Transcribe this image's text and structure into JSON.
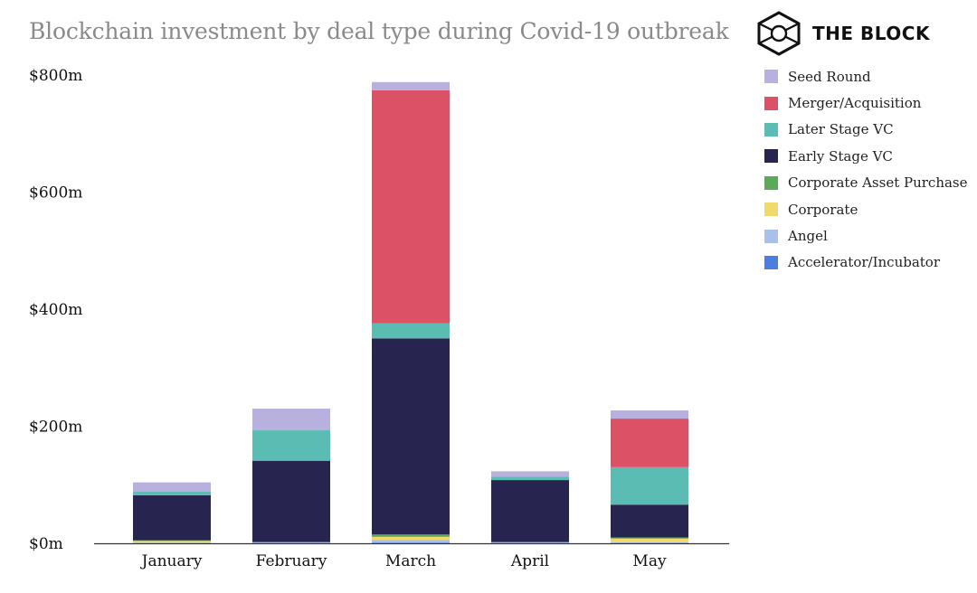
{
  "brand": {
    "name": "THE BLOCK"
  },
  "chart_data": {
    "type": "bar",
    "stacked": true,
    "title": "Blockchain investment by deal type during Covid-19 outbreak",
    "xlabel": "",
    "ylabel": "",
    "ylim": [
      0,
      800
    ],
    "yticks": [
      0,
      200,
      400,
      600,
      800
    ],
    "ytick_labels": [
      "$0m",
      "$200m",
      "$400m",
      "$600m",
      "$800m"
    ],
    "grid": false,
    "legend_position": "right",
    "categories": [
      "January",
      "February",
      "March",
      "April",
      "May"
    ],
    "series": [
      {
        "name": "Accelerator/Incubator",
        "color": "#4a7fe0",
        "values": [
          0,
          0,
          1,
          0,
          0
        ]
      },
      {
        "name": "Angel",
        "color": "#a9c1ea",
        "values": [
          1,
          2,
          5,
          2,
          2
        ]
      },
      {
        "name": "Corporate",
        "color": "#f2d96b",
        "values": [
          3,
          0,
          5,
          0,
          6
        ]
      },
      {
        "name": "Corporate Asset Purchase",
        "color": "#5aaa5a",
        "values": [
          1,
          0,
          4,
          0,
          2
        ]
      },
      {
        "name": "Early Stage VC",
        "color": "#27244f",
        "values": [
          77,
          139,
          335,
          106,
          56
        ]
      },
      {
        "name": "Later Stage VC",
        "color": "#5abcb3",
        "values": [
          6,
          52,
          26,
          6,
          64
        ]
      },
      {
        "name": "Merger/Acquisition",
        "color": "#dd5166",
        "values": [
          0,
          0,
          398,
          0,
          83
        ]
      },
      {
        "name": "Seed Round",
        "color": "#b8b1df",
        "values": [
          16,
          37,
          14,
          9,
          14
        ]
      }
    ],
    "legend": [
      {
        "label": "Seed Round",
        "color": "#b8b1df"
      },
      {
        "label": "Merger/Acquisition",
        "color": "#dd5166"
      },
      {
        "label": "Later Stage VC",
        "color": "#5abcb3"
      },
      {
        "label": "Early Stage VC",
        "color": "#27244f"
      },
      {
        "label": "Corporate Asset Purchase",
        "color": "#5aaa5a"
      },
      {
        "label": "Corporate",
        "color": "#f2d96b"
      },
      {
        "label": "Angel",
        "color": "#a9c1ea"
      },
      {
        "label": "Accelerator/Incubator",
        "color": "#4a7fe0"
      }
    ]
  }
}
